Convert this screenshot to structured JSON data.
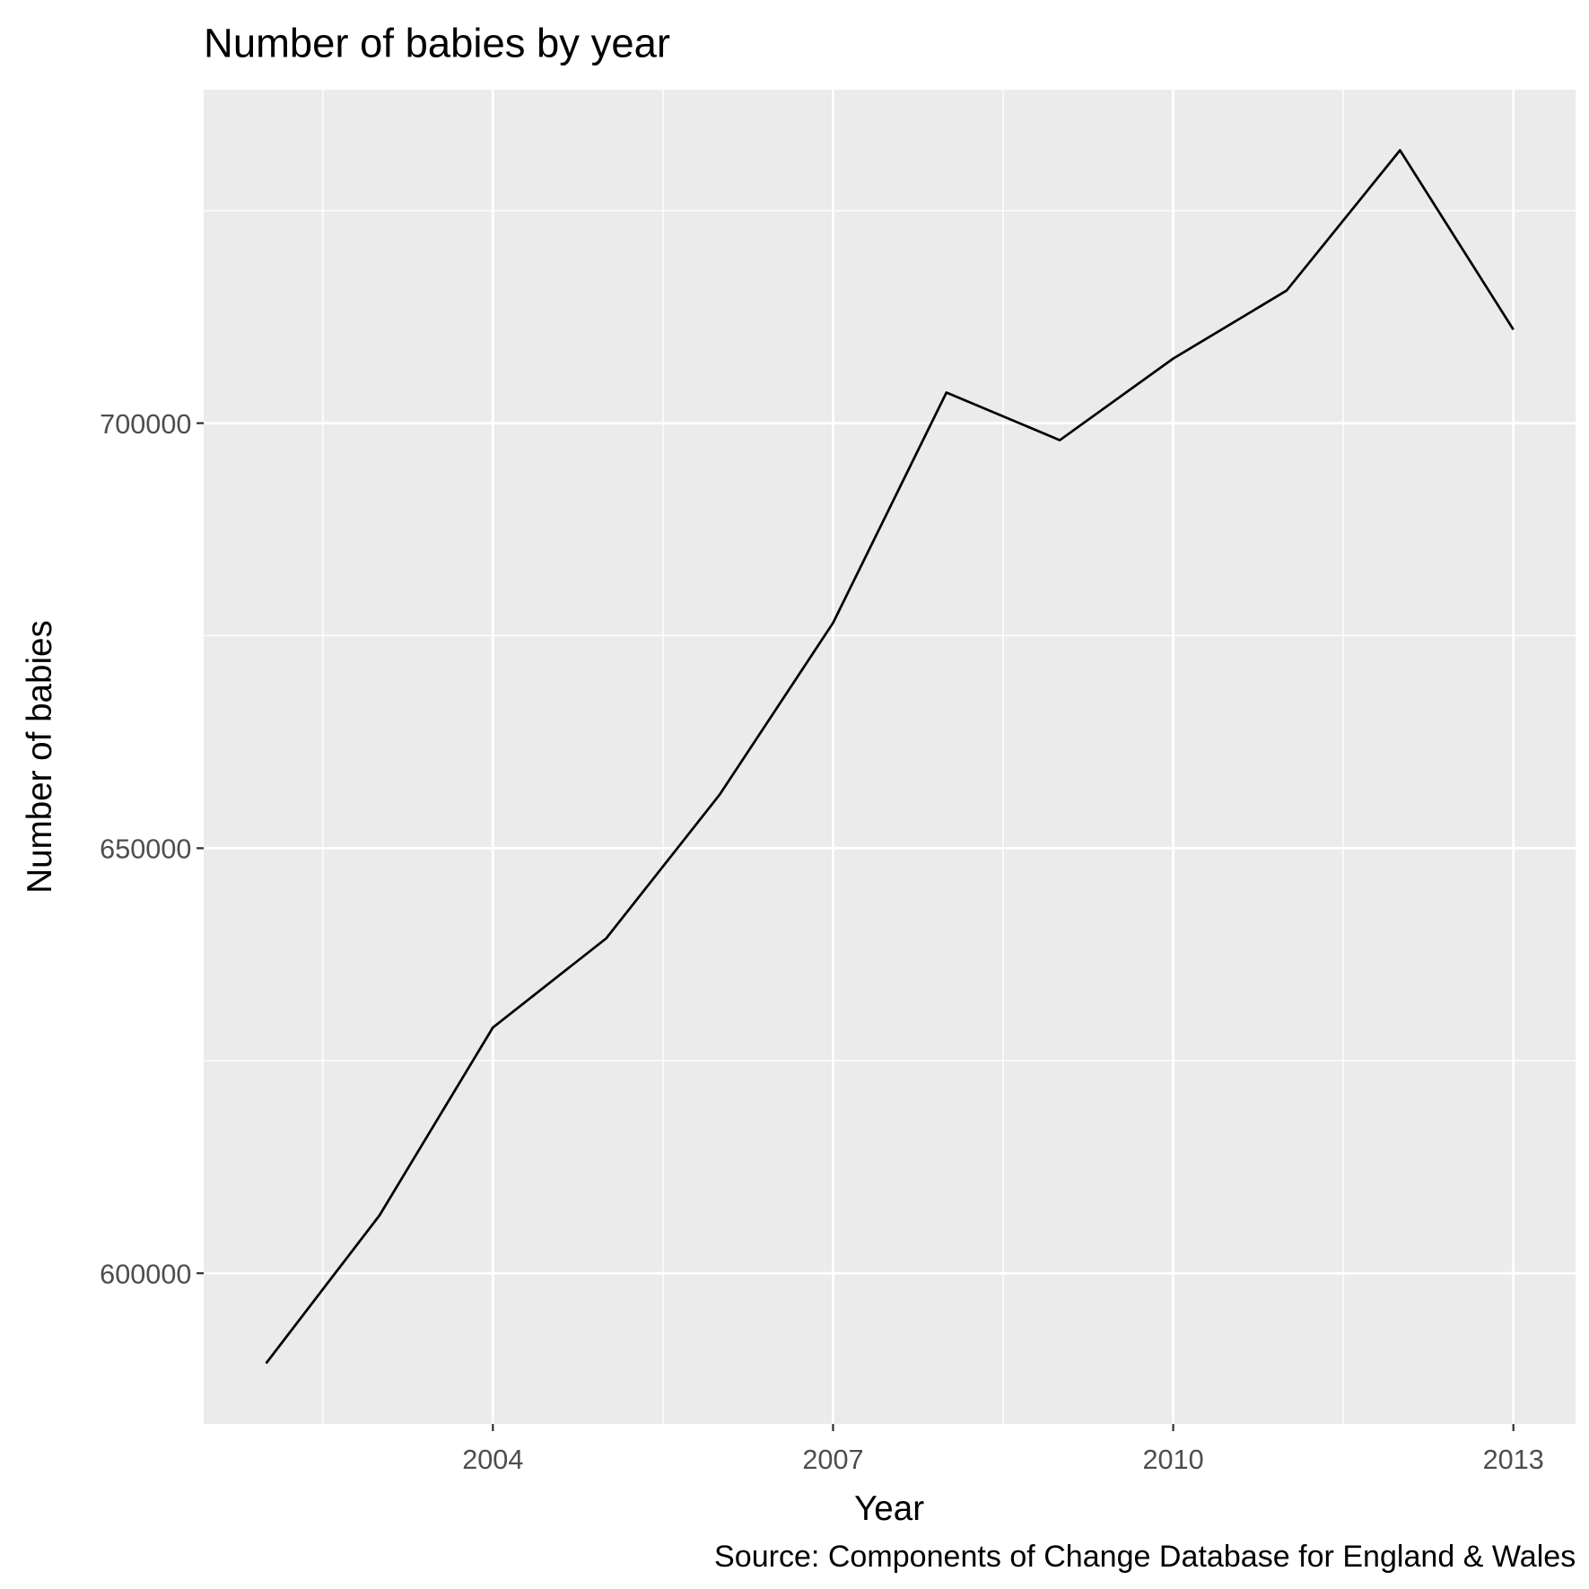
{
  "chart_data": {
    "type": "line",
    "title": "Number of babies by year",
    "x_label": "Year",
    "y_label": "Number of babies",
    "caption": "Source: Components of Change Database for England & Wales",
    "x": [
      2002,
      2003,
      2004,
      2005,
      2006,
      2007,
      2008,
      2009,
      2010,
      2011,
      2012,
      2013
    ],
    "values": [
      589400,
      606800,
      628900,
      639400,
      656300,
      676500,
      703600,
      698000,
      707600,
      715600,
      732100,
      711000
    ],
    "color": "#000000",
    "xlim": [
      2001.45,
      2013.55
    ],
    "xticks": [
      2004,
      2007,
      2010,
      2013
    ],
    "ylim": [
      582265,
      739235
    ],
    "yticks": [
      600000,
      650000,
      700000
    ],
    "grid": true
  }
}
